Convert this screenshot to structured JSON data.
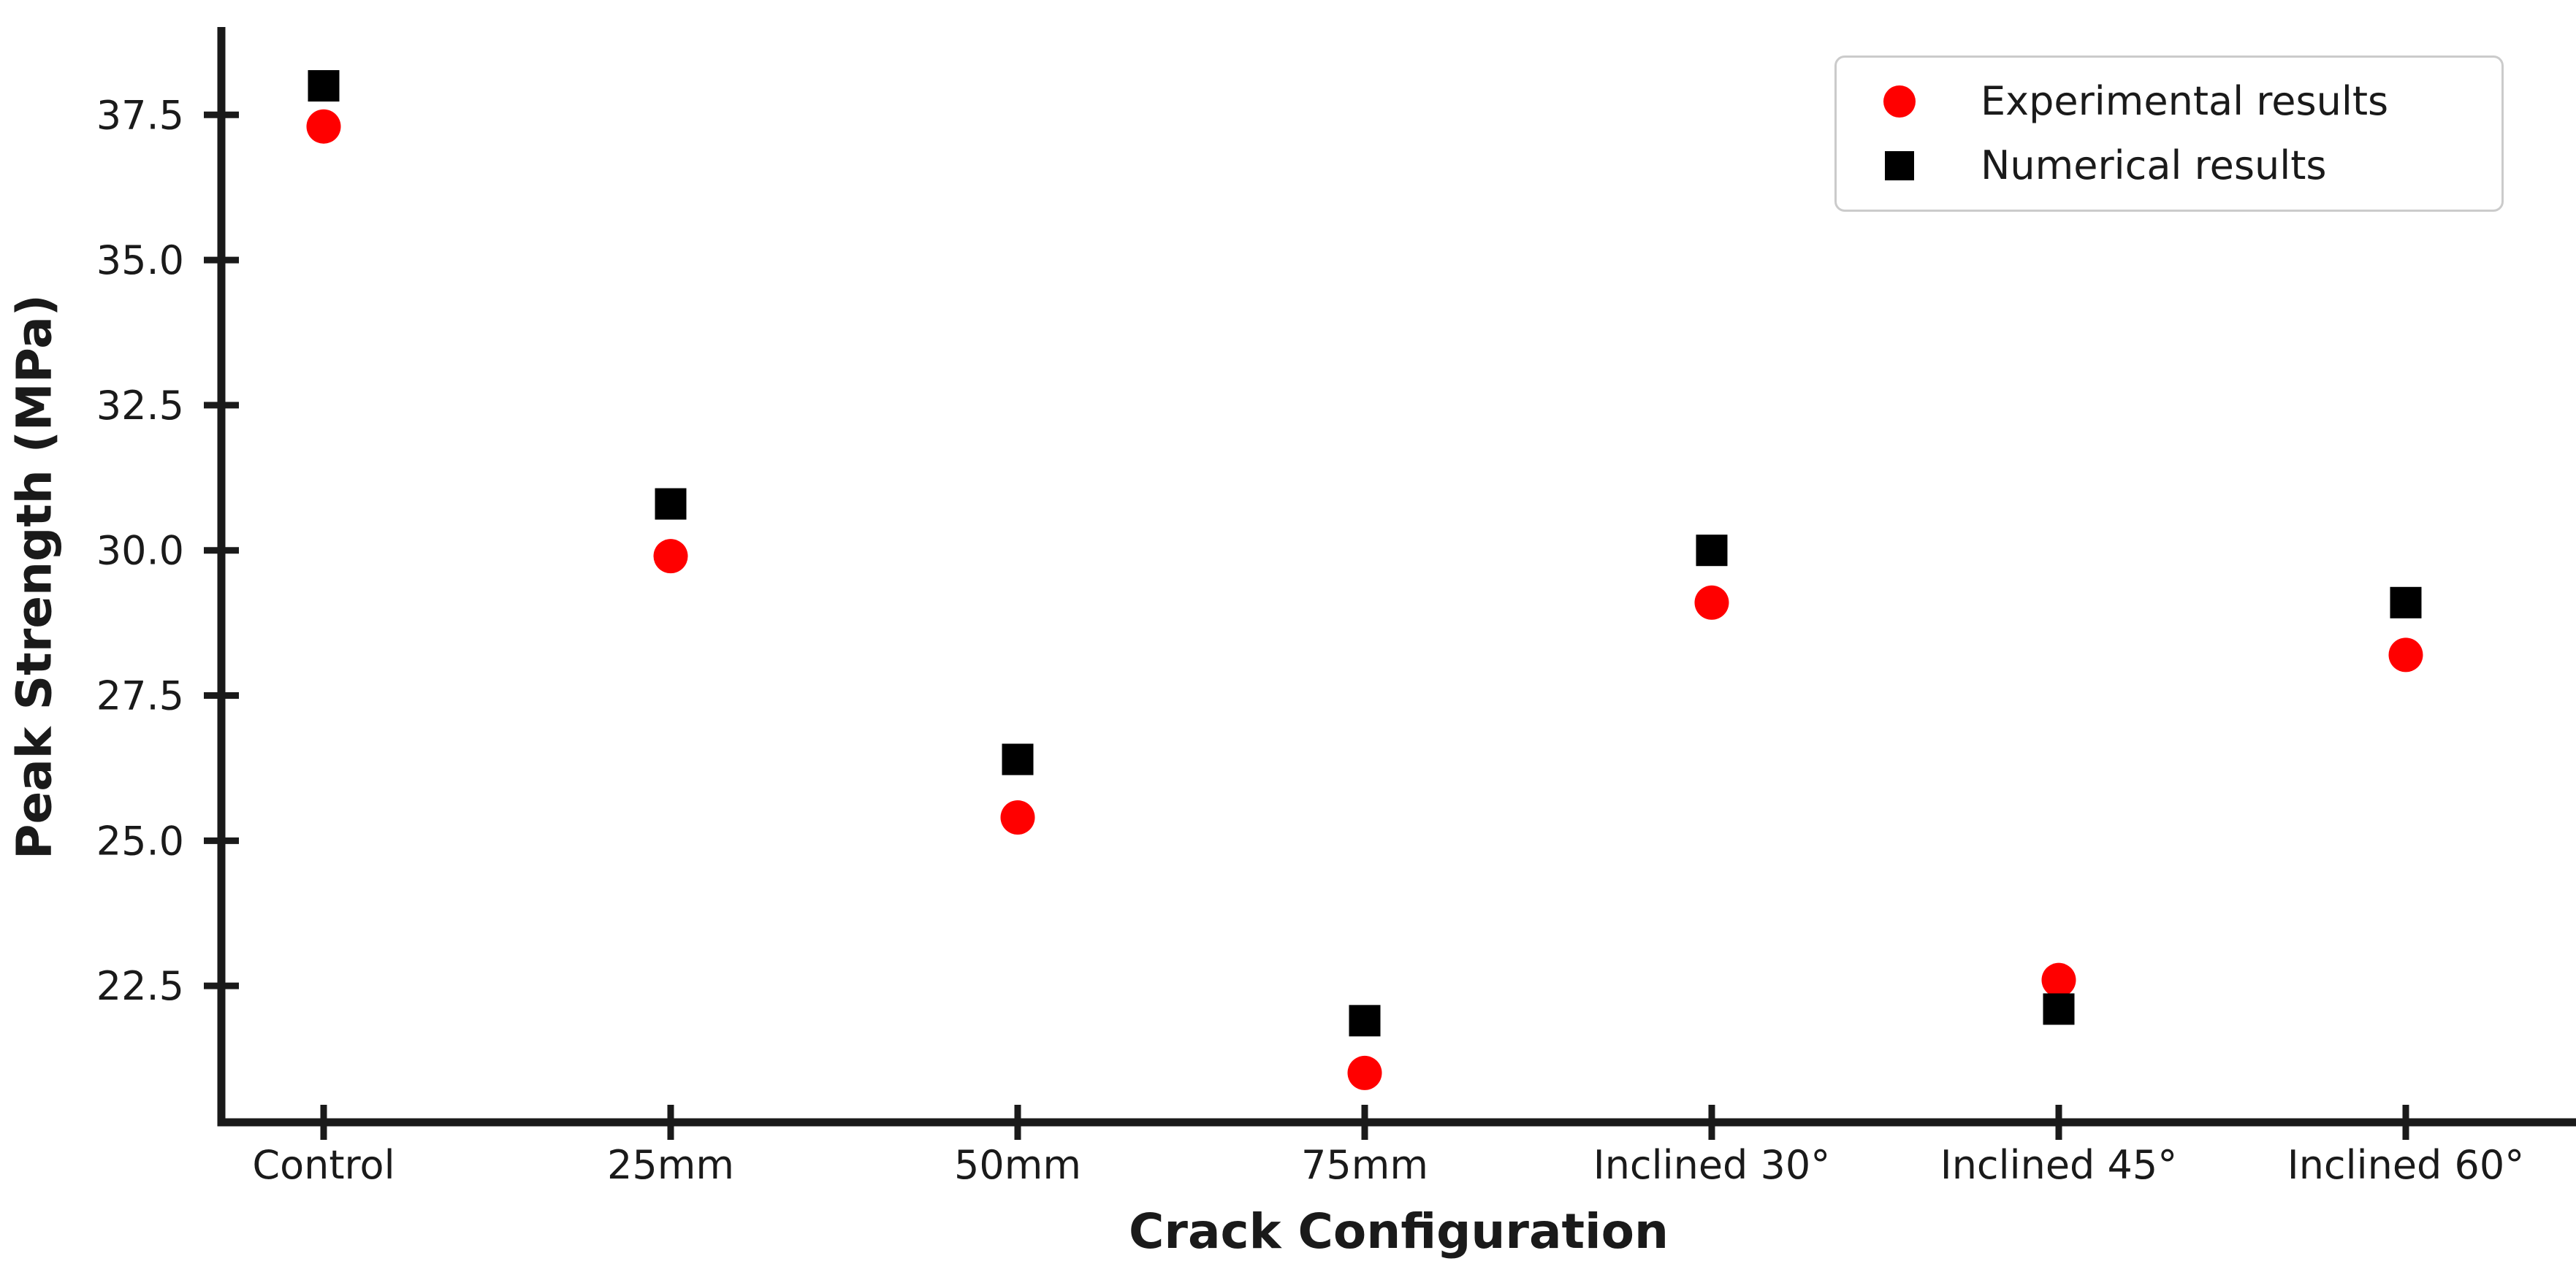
{
  "figure": {
    "background_color": "#ffffff",
    "axis_color": "#1a1a1a",
    "text_color": "#1a1a1a",
    "legend_border_color": "#cbcbcb"
  },
  "chart_data": {
    "type": "scatter",
    "title": "",
    "xlabel": "Crack Configuration",
    "ylabel": "Peak Strength (MPa)",
    "categories": [
      "Control",
      "25mm",
      "50mm",
      "75mm",
      "Inclined 30°",
      "Inclined 45°",
      "Inclined 60°"
    ],
    "series": [
      {
        "name": "Experimental results",
        "marker": "circle",
        "color": "#ff0000",
        "values": [
          37.3,
          29.9,
          25.4,
          21.0,
          29.1,
          22.6,
          28.2
        ]
      },
      {
        "name": "Numerical results",
        "marker": "square",
        "color": "#000000",
        "values": [
          38.0,
          30.8,
          26.4,
          21.9,
          30.0,
          22.1,
          29.1
        ]
      }
    ],
    "yticks": [
      22.5,
      25.0,
      27.5,
      30.0,
      32.5,
      35.0,
      37.5
    ],
    "ylim": [
      20.15,
      38.95
    ],
    "grid": false,
    "legend_position": "upper right",
    "tick_direction": "inout",
    "spines": [
      "left",
      "bottom"
    ]
  }
}
